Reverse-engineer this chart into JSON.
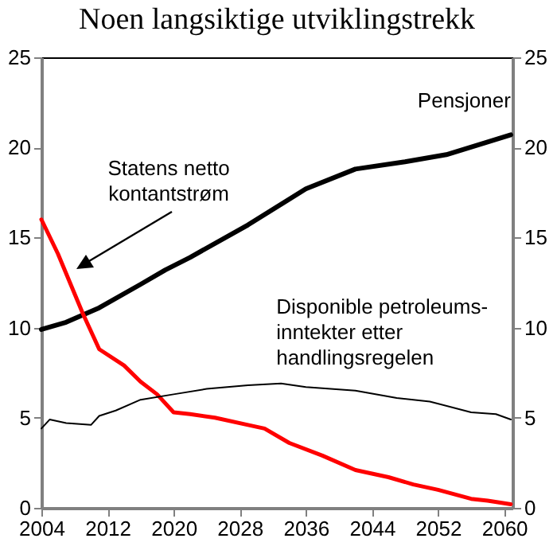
{
  "chart_data": {
    "type": "line",
    "title": "Noen langsiktige utviklingstrekk",
    "xlim": [
      2004,
      2061
    ],
    "xticks": [
      2004,
      2012,
      2020,
      2028,
      2036,
      2044,
      2052,
      2060
    ],
    "ylim": [
      0,
      25
    ],
    "yticks": [
      0,
      5,
      10,
      15,
      20,
      25
    ],
    "y2lim": [
      0,
      25
    ],
    "y2ticks": [
      0,
      5,
      10,
      15,
      20,
      25
    ],
    "grid": false,
    "series": [
      {
        "name": "Pensjoner",
        "color": "#000000",
        "x": [
          2004,
          2007,
          2011,
          2016,
          2019,
          2022,
          2029,
          2036,
          2042,
          2048,
          2053,
          2058,
          2060.8
        ],
        "values": [
          9.9,
          10.3,
          11.1,
          12.4,
          13.2,
          13.9,
          15.7,
          17.7,
          18.8,
          19.2,
          19.6,
          20.3,
          20.7
        ]
      },
      {
        "name": "Statens netto\nkontantstrøm",
        "color": "#ff0000",
        "x": [
          2004,
          2006,
          2009,
          2011,
          2014,
          2016,
          2018,
          2020,
          2022,
          2025,
          2029,
          2031,
          2034,
          2038,
          2042,
          2043,
          2046,
          2049,
          2052,
          2056,
          2058,
          2060.8
        ],
        "values": [
          16.0,
          14.1,
          10.8,
          8.8,
          7.9,
          7.0,
          6.3,
          5.3,
          5.2,
          5.0,
          4.6,
          4.4,
          3.6,
          2.9,
          2.1,
          2.0,
          1.7,
          1.3,
          1.0,
          0.5,
          0.4,
          0.2
        ]
      },
      {
        "name": "Disponible petroleums-\ninntekter etter\nhandlingsregelen",
        "color": "#000000",
        "x": [
          2004,
          2005,
          2007,
          2010,
          2011,
          2013,
          2016,
          2020,
          2024,
          2029,
          2033,
          2036,
          2042,
          2047,
          2051,
          2056,
          2059,
          2060.8
        ],
        "values": [
          4.4,
          4.9,
          4.7,
          4.6,
          5.1,
          5.4,
          6.0,
          6.3,
          6.6,
          6.8,
          6.9,
          6.7,
          6.5,
          6.1,
          5.9,
          5.3,
          5.2,
          4.9
        ]
      }
    ]
  }
}
